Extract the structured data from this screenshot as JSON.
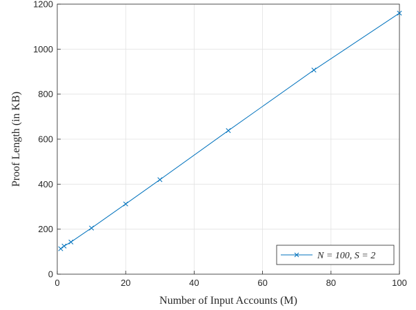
{
  "chart_data": {
    "type": "line",
    "xlabel": "Number of Input Accounts (M)",
    "ylabel": "Proof Length (in KB)",
    "xlim": [
      0,
      100
    ],
    "ylim": [
      0,
      1200
    ],
    "xticks": [
      0,
      20,
      40,
      60,
      80,
      100
    ],
    "yticks": [
      0,
      200,
      400,
      600,
      800,
      1000,
      1200
    ],
    "grid": true,
    "legend_position": "bottom-right",
    "series": [
      {
        "name": "N = 100, S = 2",
        "color": "#0072BD",
        "marker": "x",
        "x": [
          1,
          2,
          4,
          10,
          20,
          30,
          50,
          75,
          100
        ],
        "y": [
          113,
          125,
          143,
          205,
          312,
          420,
          638,
          907,
          1160
        ]
      }
    ]
  }
}
